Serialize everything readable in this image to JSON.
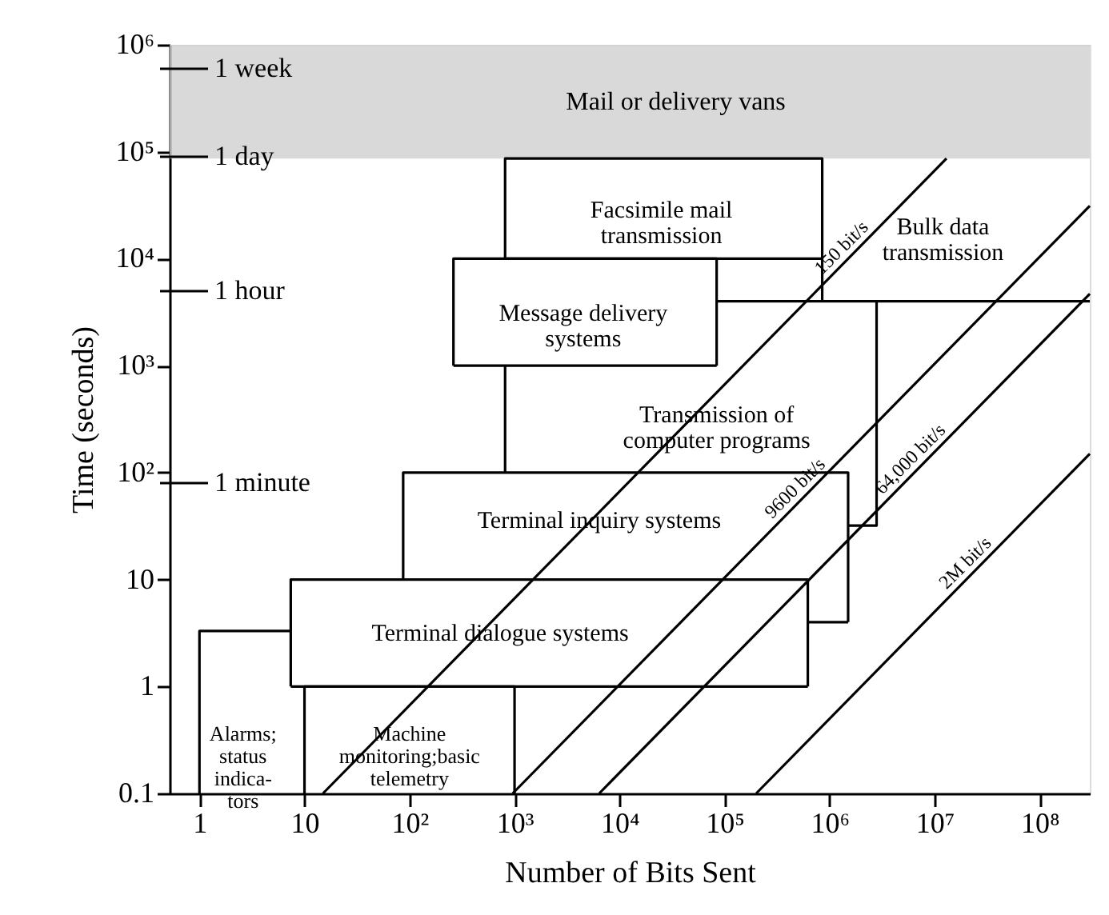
{
  "chart_data": {
    "type": "line",
    "xlabel": "Number of Bits Sent",
    "ylabel": "Time (seconds)",
    "log": "xy",
    "grid": false,
    "xlim": [
      0.52,
      300000000
    ],
    "ylim": [
      0.1,
      1000000
    ],
    "xticks": [
      1,
      10,
      {
        "value": 100,
        "label": "10²"
      },
      {
        "value": 1000,
        "label": "10³"
      },
      {
        "value": 10000,
        "label": "10⁴"
      },
      {
        "value": 100000,
        "label": "10⁵"
      },
      {
        "value": 1000000,
        "label": "10⁶"
      },
      {
        "value": 10000000,
        "label": "10⁷"
      },
      {
        "value": 100000000,
        "label": "10⁸"
      }
    ],
    "yticks": [
      0.1,
      1,
      10,
      {
        "value": 100,
        "label": "10²"
      },
      {
        "value": 1000,
        "label": "10³"
      },
      {
        "value": 10000,
        "label": "10⁴"
      },
      {
        "value": 100000,
        "label": "10⁵"
      },
      {
        "value": 1000000,
        "label": "10⁶"
      }
    ],
    "bands": [
      {
        "axis": "y",
        "from": 86400,
        "to": 1000000,
        "label": "Mail or delivery vans",
        "color": "#d0d0d0"
      }
    ],
    "series": [
      {
        "name": "150 bit/s",
        "color": "#000000",
        "x": [
          15,
          12960000
        ],
        "values": [
          0.1,
          86400
        ]
      },
      {
        "name": "9600 bit/s",
        "color": "#000000",
        "x": [
          960,
          300000000
        ],
        "values": [
          0.1,
          31250
        ]
      },
      {
        "name": "64,000 bit/s",
        "color": "#000000",
        "x": [
          6400,
          300000000
        ],
        "values": [
          0.1,
          4687
        ]
      },
      {
        "name": "2M bit/s",
        "color": "#000000",
        "x": [
          200000,
          300000000
        ],
        "values": [
          0.1,
          150
        ]
      },
      {
        "color": "#000000",
        "x": [
          1,
          1,
          7.4
        ],
        "values": [
          0.1,
          3.3,
          3.3
        ]
      },
      {
        "color": "#000000",
        "x": [
          10,
          10,
          1000,
          1000
        ],
        "values": [
          0.1,
          1,
          1,
          0.1
        ]
      },
      {
        "color": "#000000",
        "x": [
          7.4,
          7.4,
          620000,
          620000
        ],
        "values": [
          1,
          10,
          10,
          1
        ]
      },
      {
        "color": "#000000",
        "x": [
          7.4,
          620000
        ],
        "values": [
          1,
          1
        ]
      },
      {
        "color": "#000000",
        "x": [
          87,
          87,
          1500000,
          1500000
        ],
        "values": [
          10,
          100,
          100,
          4
        ]
      },
      {
        "color": "#000000",
        "x": [
          620000,
          1500000
        ],
        "values": [
          4,
          4
        ]
      },
      {
        "color": "#000000",
        "x": [
          813,
          813
        ],
        "values": [
          100,
          1000
        ]
      },
      {
        "color": "#000000",
        "x": [
          84000,
          300000000
        ],
        "values": [
          4000,
          4000
        ]
      },
      {
        "color": "#000000",
        "x": [
          1500000,
          2800000,
          2800000
        ],
        "values": [
          32,
          32,
          4000
        ]
      },
      {
        "color": "#000000",
        "x": [
          813,
          813,
          850000,
          850000
        ],
        "values": [
          10000,
          86400,
          86400,
          4000
        ]
      },
      {
        "color": "#000000",
        "x": [
          813,
          850000
        ],
        "values": [
          10000,
          10000
        ]
      },
      {
        "color": "#000000",
        "x": [
          262,
          262,
          84000,
          84000
        ],
        "values": [
          1000,
          10000,
          10000,
          1000
        ]
      },
      {
        "color": "#000000",
        "x": [
          262,
          84000
        ],
        "values": [
          1000,
          1000
        ]
      }
    ],
    "annotations": [
      "1 minute",
      "1 hour",
      "1 day",
      "1 week",
      "Facsimile mail\ntransmission",
      "Message delivery\nsystems",
      "Bulk data\ntransmission",
      "Transmission of\ncomputer programs",
      "Terminal inquiry systems",
      "Terminal dialogue systems",
      "Alarms;\nstatus\nindica-\ntors",
      "Machine\nmonitoring;basic\ntelemetry"
    ]
  }
}
